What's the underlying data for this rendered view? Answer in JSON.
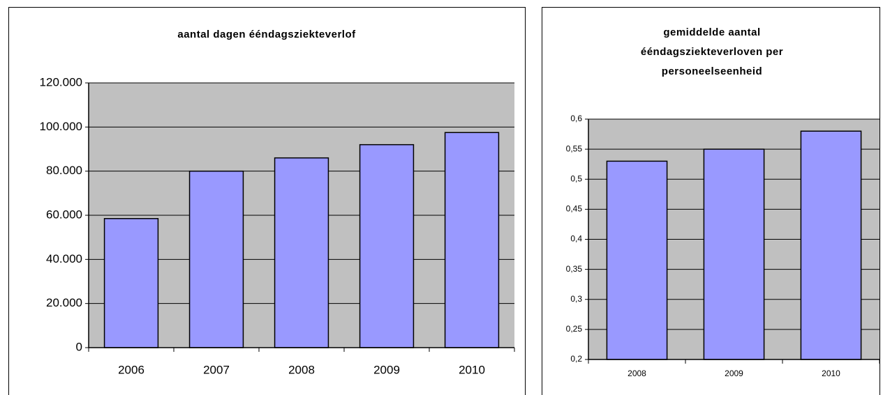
{
  "chart_data": [
    {
      "type": "bar",
      "title": [
        "aantal dagen ééndagsziekteverlof"
      ],
      "categories": [
        "2006",
        "2007",
        "2008",
        "2009",
        "2010"
      ],
      "values": [
        58500,
        80000,
        86000,
        92000,
        97500
      ],
      "color": "#9999ff",
      "ylim": [
        0,
        120000
      ],
      "yticks": [
        0,
        {
          "value": 20000,
          "label": "20.000"
        },
        {
          "value": 40000,
          "label": "40.000"
        },
        {
          "value": 60000,
          "label": "60.000"
        },
        {
          "value": 80000,
          "label": "80.000"
        },
        {
          "value": 100000,
          "label": "100.000"
        },
        {
          "value": 120000,
          "label": "120.000"
        }
      ],
      "grid": true
    },
    {
      "type": "bar",
      "title": [
        "gemiddelde aantal",
        "ééndagsziekteverloven per",
        "personeelseenheid"
      ],
      "categories": [
        "2008",
        "2009",
        "2010"
      ],
      "values": [
        0.53,
        0.55,
        0.58
      ],
      "color": "#9999ff",
      "ylim": [
        0.2,
        0.6
      ],
      "yticks": [
        {
          "value": 0.2,
          "label": "0,2"
        },
        {
          "value": 0.25,
          "label": "0,25"
        },
        {
          "value": 0.3,
          "label": "0,3"
        },
        {
          "value": 0.35,
          "label": "0,35"
        },
        {
          "value": 0.4,
          "label": "0,4"
        },
        {
          "value": 0.45,
          "label": "0,45"
        },
        {
          "value": 0.5,
          "label": "0,5"
        },
        {
          "value": 0.55,
          "label": "0,55"
        },
        {
          "value": 0.6,
          "label": "0,6"
        }
      ],
      "grid": true
    }
  ]
}
